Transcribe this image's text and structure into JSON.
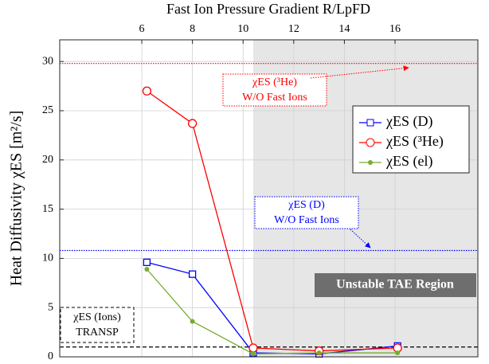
{
  "chart_data": {
    "type": "line",
    "xlabel": "Fast Ion Pressure Gradient R/LpFD",
    "ylabel": "Heat Diffusivity χES [m²/s]",
    "x": [
      6.2,
      8.0,
      10.4,
      13.0,
      16.1
    ],
    "xlim": [
      2.76,
      19.27
    ],
    "xticks": [
      6,
      8,
      10,
      12,
      14,
      16
    ],
    "ylim": [
      0,
      32.2
    ],
    "yticks": [
      0,
      5,
      10,
      15,
      20,
      25,
      30
    ],
    "grid": true,
    "legend": "upper right",
    "series": [
      {
        "name": "χES (D)",
        "color": "#0000ff",
        "marker": "square",
        "values": [
          9.6,
          8.4,
          0.4,
          0.3,
          1.1
        ]
      },
      {
        "name": "χES (³He)",
        "color": "#ff0000",
        "marker": "circle",
        "values": [
          27.0,
          23.7,
          0.9,
          0.6,
          0.9
        ]
      },
      {
        "name": "χES (el)",
        "color": "#77ac30",
        "marker": "dot",
        "values": [
          8.9,
          3.6,
          0.3,
          0.4,
          0.4
        ]
      }
    ],
    "reference_lines": [
      {
        "value": 29.8,
        "color": "#ff0000",
        "style": "dotted"
      },
      {
        "value": 10.8,
        "color": "#0000ff",
        "style": "dotted"
      },
      {
        "value": 1.0,
        "color": "#000000",
        "style": "dashed"
      }
    ],
    "annotations": [
      {
        "lines": [
          "χES (³He)",
          "W/O Fast Ions"
        ],
        "color": "#ff0000"
      },
      {
        "lines": [
          "χES (D)",
          "W/O Fast Ions"
        ],
        "color": "#0000ff"
      },
      {
        "lines": [
          "χES (Ions)",
          "TRANSP"
        ],
        "color": "#000000"
      }
    ],
    "shaded_region": {
      "xstart": 10.4,
      "label": "Unstable TAE Region"
    }
  }
}
